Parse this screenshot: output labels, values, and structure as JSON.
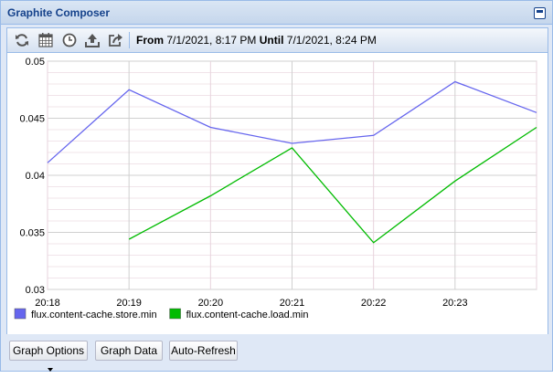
{
  "window": {
    "title": "Graphite Composer"
  },
  "toolbar": {
    "icons": [
      "refresh-icon",
      "calendar-icon",
      "clock-icon",
      "upload-icon",
      "share-icon"
    ],
    "from_label": "From",
    "from_value": "7/1/2021, 8:17 PM",
    "until_label": "Until",
    "until_value": "7/1/2021, 8:24 PM"
  },
  "chart_data": {
    "type": "line",
    "x": [
      "20:18",
      "20:19",
      "20:20",
      "20:21",
      "20:22",
      "20:23",
      "20:24"
    ],
    "xticks": [
      "20:18",
      "20:19",
      "20:20",
      "20:21",
      "20:22",
      "20:23"
    ],
    "yticks": [
      "0.03",
      "0.035",
      "0.04",
      "0.045",
      "0.05"
    ],
    "ylim": [
      0.03,
      0.05
    ],
    "grid": true,
    "legend_position": "bottom-left",
    "series": [
      {
        "name": "flux.content-cache.store.min",
        "color": "#6666ee",
        "values": [
          0.0411,
          0.0475,
          0.0442,
          0.0428,
          0.0435,
          0.0482,
          0.0455
        ]
      },
      {
        "name": "flux.content-cache.load.min",
        "color": "#00bb00",
        "values": [
          null,
          0.0344,
          0.0382,
          0.0424,
          0.0341,
          0.0395,
          0.0442
        ]
      }
    ]
  },
  "buttons": {
    "graph_options": "Graph Options",
    "graph_data": "Graph Data",
    "auto_refresh": "Auto-Refresh"
  }
}
